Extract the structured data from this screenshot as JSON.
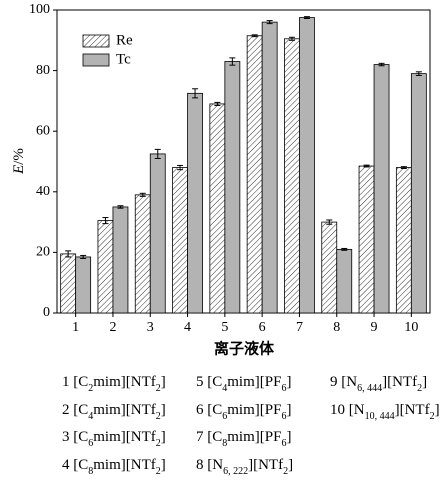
{
  "chart_data": {
    "type": "bar",
    "categories": [
      "1",
      "2",
      "3",
      "4",
      "5",
      "6",
      "7",
      "8",
      "9",
      "10"
    ],
    "series": [
      {
        "name": "Re",
        "color": "#ffffff",
        "pattern": "hatch",
        "values": [
          19.5,
          30.5,
          39,
          48,
          69,
          91.5,
          90.5,
          30,
          48.5,
          48
        ],
        "errors": [
          1,
          1,
          0.5,
          0.7,
          0.5,
          0.3,
          0.5,
          0.7,
          0.3,
          0.3
        ]
      },
      {
        "name": "Tc",
        "color": "#b3b3b3",
        "values": [
          18.5,
          35,
          52.5,
          72.5,
          83,
          96,
          97.5,
          21,
          82,
          79
        ],
        "errors": [
          0.5,
          0.4,
          1.5,
          1.5,
          1.2,
          0.5,
          0.3,
          0.3,
          0.4,
          0.6
        ]
      }
    ],
    "ylim": [
      0,
      100
    ],
    "yticks": [
      0,
      20,
      40,
      60,
      80,
      100
    ],
    "ylabel": [
      "E",
      "/%"
    ],
    "xlabel": "离子液体",
    "legend": "upper-left",
    "notes": [
      [
        "1 [C",
        "2",
        "mim][NTf",
        "2",
        "]"
      ],
      [
        "2 [C",
        "4",
        "mim][NTf",
        "2",
        "]"
      ],
      [
        "3 [C",
        "6",
        "mim][NTf",
        "2",
        "]"
      ],
      [
        "4 [C",
        "8",
        "mim][NTf",
        "2",
        "]"
      ],
      [
        "5 [C",
        "4",
        "mim][PF",
        "6",
        "]"
      ],
      [
        "6 [C",
        "6",
        "mim][PF",
        "6",
        "]"
      ],
      [
        "7 [C",
        "8",
        "mim][PF",
        "6",
        "]"
      ],
      [
        "8 [N",
        "6, 222",
        "][NTf",
        "2",
        "]"
      ],
      [
        "9 [N",
        "6, 444",
        "][NTf",
        "2",
        "]"
      ],
      [
        "10 [N",
        "10, 444",
        "][NTf",
        "2",
        "]"
      ]
    ]
  }
}
